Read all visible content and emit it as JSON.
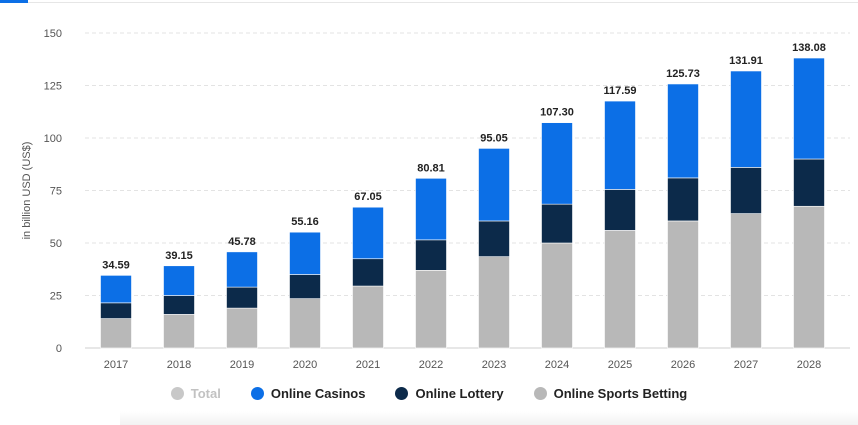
{
  "chart_data": {
    "type": "bar",
    "stacked": true,
    "title": "",
    "xlabel": "",
    "ylabel": "in billion USD (US$)",
    "ylim": [
      0,
      150
    ],
    "yticks": [
      0,
      25,
      50,
      75,
      100,
      125,
      150
    ],
    "grid": true,
    "legend_position": "bottom",
    "categories": [
      "2017",
      "2018",
      "2019",
      "2020",
      "2021",
      "2022",
      "2023",
      "2024",
      "2025",
      "2026",
      "2027",
      "2028"
    ],
    "totals": [
      34.59,
      39.15,
      45.78,
      55.16,
      67.05,
      80.81,
      95.05,
      107.3,
      117.59,
      125.73,
      131.91,
      138.08
    ],
    "totals_labels": [
      "34.59",
      "39.15",
      "45.78",
      "55.16",
      "67.05",
      "80.81",
      "95.05",
      "107.30",
      "117.59",
      "125.73",
      "131.91",
      "138.08"
    ],
    "series": [
      {
        "name": "Online Sports Betting",
        "color": "#b8b8b8",
        "values": [
          14.0,
          16.0,
          19.0,
          23.5,
          29.5,
          37.0,
          43.5,
          50.0,
          56.0,
          60.5,
          64.0,
          67.5
        ]
      },
      {
        "name": "Online Lottery",
        "color": "#0c2a4a",
        "values": [
          7.5,
          9.0,
          10.0,
          11.5,
          13.0,
          14.5,
          17.0,
          18.5,
          19.5,
          20.5,
          22.0,
          22.5
        ]
      },
      {
        "name": "Online Casinos",
        "color": "#0c6fe6",
        "values": [
          13.09,
          14.15,
          16.78,
          20.16,
          24.55,
          29.31,
          34.55,
          38.8,
          42.09,
          44.73,
          45.91,
          48.08
        ]
      }
    ]
  },
  "legend": {
    "items": [
      {
        "label": "Total",
        "color": "#c8c8c8",
        "active": false
      },
      {
        "label": "Online Casinos",
        "color": "#0c6fe6",
        "active": true
      },
      {
        "label": "Online Lottery",
        "color": "#0c2a4a",
        "active": true
      },
      {
        "label": "Online Sports Betting",
        "color": "#b8b8b8",
        "active": true
      }
    ]
  }
}
